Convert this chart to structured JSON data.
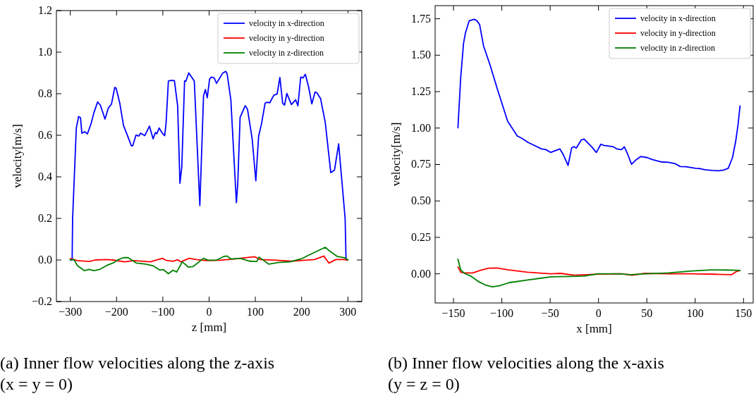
{
  "chart_data": [
    {
      "type": "line",
      "xlabel": "z [mm]",
      "ylabel": "velocity[m/s]",
      "xlim": [
        -330,
        330
      ],
      "ylim": [
        -0.2,
        1.2
      ],
      "xticks": [
        {
          "value": -300,
          "label": "−300"
        },
        {
          "value": -200,
          "label": "−200"
        },
        {
          "value": -100,
          "label": "−100"
        },
        0,
        100,
        200,
        300
      ],
      "yticks": [
        {
          "value": -0.2,
          "label": "−0.2"
        },
        {
          "value": 0,
          "label": "0.0"
        },
        {
          "value": 0.2,
          "label": "0.2"
        },
        {
          "value": 0.4,
          "label": "0.4"
        },
        {
          "value": 0.6,
          "label": "0.6"
        },
        {
          "value": 0.8,
          "label": "0.8"
        },
        {
          "value": 1,
          "label": "1.0"
        },
        {
          "value": 1.2,
          "label": "1.2"
        }
      ],
      "legend": "top right",
      "grid": false,
      "line_style": "solid",
      "annotations": [
        "(a) Inner flow velocities along the z-axis (x = y = 0)"
      ],
      "series": [
        {
          "name": "velocity in x-direction",
          "color": "#0000ff",
          "x": [
            -300,
            -296,
            -295,
            -287,
            -282,
            -278,
            -275,
            -269,
            -263,
            -255,
            -249,
            -241,
            -235,
            -225,
            -218,
            -211,
            -204,
            -201,
            -193,
            -185,
            -175,
            -168,
            -165,
            -158,
            -152,
            -148,
            -139,
            -129,
            -121,
            -116,
            -113,
            -108,
            -101,
            -96,
            -93,
            -88,
            -83,
            -75,
            -68,
            -63,
            -59,
            -53,
            -50,
            -44,
            -32,
            -20,
            -12,
            -8,
            -4,
            1,
            5,
            11,
            16,
            29,
            36,
            39,
            47,
            59,
            62,
            67,
            78,
            83,
            93,
            101,
            107,
            113,
            121,
            125,
            131,
            140,
            147,
            153,
            159,
            163,
            168,
            178,
            187,
            192,
            198,
            203,
            208,
            215,
            222,
            229,
            233,
            241,
            251,
            263,
            271,
            280,
            294,
            296,
            300
          ],
          "values": [
            0,
            0,
            0.2,
            0.635,
            0.69,
            0.685,
            0.61,
            0.617,
            0.607,
            0.657,
            0.708,
            0.76,
            0.745,
            0.678,
            0.73,
            0.75,
            0.83,
            0.827,
            0.754,
            0.647,
            0.59,
            0.549,
            0.55,
            0.601,
            0.596,
            0.61,
            0.598,
            0.644,
            0.583,
            0.613,
            0.607,
            0.635,
            0.61,
            0.598,
            0.657,
            0.861,
            0.864,
            0.863,
            0.742,
            0.369,
            0.449,
            0.861,
            0.861,
            0.9,
            0.861,
            0.262,
            0.79,
            0.82,
            0.78,
            0.87,
            0.88,
            0.876,
            0.85,
            0.898,
            0.908,
            0.895,
            0.771,
            0.276,
            0.37,
            0.686,
            0.742,
            0.725,
            0.584,
            0.381,
            0.595,
            0.652,
            0.754,
            0.759,
            0.756,
            0.793,
            0.799,
            0.878,
            0.754,
            0.745,
            0.801,
            0.748,
            0.771,
            0.742,
            0.88,
            0.876,
            0.893,
            0.833,
            0.751,
            0.808,
            0.804,
            0.776,
            0.663,
            0.42,
            0.432,
            0.559,
            0.2,
            0,
            0
          ]
        },
        {
          "name": "velocity in y-direction",
          "color": "#ff0000",
          "x": [
            -300,
            -285,
            -259,
            -246,
            -223,
            -208,
            -183,
            -162,
            -127,
            -101,
            -94,
            -78,
            -68,
            -61,
            -43,
            -28,
            -7,
            23,
            54,
            98,
            110,
            146,
            177,
            207,
            228,
            248,
            259,
            274,
            292,
            300
          ],
          "values": [
            0.006,
            -0.003,
            -0.007,
            0,
            0.002,
            0,
            -0.009,
            -0.003,
            -0.009,
            0.008,
            -0.001,
            -0.006,
            0.001,
            -0.009,
            0.008,
            0.002,
            -0.003,
            -0.001,
            0.005,
            0.016,
            0.002,
            -0.001,
            -0.006,
            -0.001,
            0.002,
            0.019,
            -0.015,
            0.002,
            0.002,
            0
          ]
        },
        {
          "name": "velocity in z-direction",
          "color": "#008000",
          "x": [
            -300,
            -292,
            -285,
            -270,
            -259,
            -249,
            -236,
            -221,
            -208,
            -196,
            -185,
            -175,
            -157,
            -137,
            -121,
            -106,
            -99,
            -88,
            -78,
            -70,
            -58,
            -45,
            -35,
            -12,
            -2,
            16,
            32,
            39,
            47,
            67,
            88,
            103,
            108,
            129,
            149,
            175,
            200,
            215,
            231,
            251,
            261,
            277,
            294,
            300
          ],
          "values": [
            0,
            0.002,
            -0.026,
            -0.051,
            -0.045,
            -0.051,
            -0.045,
            -0.026,
            -0.015,
            0.002,
            0.011,
            0.011,
            -0.015,
            -0.02,
            -0.028,
            -0.049,
            -0.046,
            -0.066,
            -0.049,
            -0.058,
            -0.009,
            -0.034,
            -0.032,
            0.008,
            -0.001,
            -0.001,
            0.017,
            0.019,
            0.005,
            0.008,
            -0.006,
            -0.007,
            0.014,
            -0.02,
            -0.012,
            -0.009,
            0.006,
            0.023,
            0.04,
            0.061,
            0.042,
            0.017,
            0.01,
            0
          ]
        }
      ]
    },
    {
      "type": "line",
      "xlabel": "x [mm]",
      "ylabel": "velocity[m/s]",
      "xlim": [
        -169,
        160
      ],
      "ylim": [
        -0.2,
        1.84
      ],
      "xticks": [
        {
          "value": -150,
          "label": "−150"
        },
        {
          "value": -100,
          "label": "−100"
        },
        {
          "value": -50,
          "label": "−50"
        },
        0,
        50,
        100,
        150
      ],
      "yticks": [
        {
          "value": 0,
          "label": "0.00"
        },
        {
          "value": 0.25,
          "label": "0.25"
        },
        {
          "value": 0.5,
          "label": "0.50"
        },
        {
          "value": 0.75,
          "label": "0.75"
        },
        {
          "value": 1,
          "label": "1.00"
        },
        {
          "value": 1.25,
          "label": "1.25"
        },
        {
          "value": 1.5,
          "label": "1.50"
        },
        {
          "value": 1.75,
          "label": "1.75"
        }
      ],
      "legend": "top right",
      "grid": false,
      "line_style": "solid",
      "annotations": [
        "(b) Inner flow velocities along the x-axis (y = z = 0)"
      ],
      "series": [
        {
          "name": "velocity in x-direction",
          "color": "#0000ff",
          "x": [
            -145.4,
            -142.5,
            -139.6,
            -137.7,
            -133.8,
            -128.7,
            -126,
            -123,
            -119,
            -112,
            -105,
            -94,
            -84,
            -79,
            -73,
            -59,
            -54.4,
            -49.5,
            -40,
            -37,
            -31.5,
            -27.7,
            -25.5,
            -23,
            -18,
            -15,
            -11.4,
            -6.6,
            -2.2,
            2.4,
            5.6,
            14.8,
            18.9,
            23.8,
            26.7,
            29.9,
            34.2,
            38.4,
            43.9,
            50.5,
            55.4,
            65,
            72.3,
            79.6,
            84.5,
            90.5,
            100.3,
            105,
            110,
            117.3,
            124.5,
            129.4,
            134.2,
            138.6,
            142,
            144.4,
            146.4
          ],
          "values": [
            1.002,
            1.349,
            1.582,
            1.651,
            1.735,
            1.746,
            1.738,
            1.711,
            1.566,
            1.429,
            1.276,
            1.047,
            0.946,
            0.929,
            0.902,
            0.857,
            0.852,
            0.833,
            0.857,
            0.825,
            0.744,
            0.865,
            0.873,
            0.862,
            0.917,
            0.925,
            0.9,
            0.868,
            0.833,
            0.889,
            0.881,
            0.873,
            0.857,
            0.852,
            0.871,
            0.825,
            0.752,
            0.78,
            0.805,
            0.797,
            0.784,
            0.768,
            0.765,
            0.755,
            0.736,
            0.735,
            0.724,
            0.722,
            0.714,
            0.709,
            0.707,
            0.712,
            0.724,
            0.797,
            0.913,
            1.026,
            1.152
          ]
        },
        {
          "name": "velocity in y-direction",
          "color": "#ff0000",
          "x": [
            -145.4,
            -142.5,
            -138.6,
            -130,
            -122,
            -113.4,
            -104.9,
            -92.7,
            -73.3,
            -49,
            -39.3,
            -24.8,
            -0.5,
            23.8,
            34.7,
            48,
            72.3,
            96.6,
            120.9,
            137.9,
            142.8,
            146.4
          ],
          "values": [
            0.048,
            0.011,
            0.006,
            0.006,
            0.024,
            0.039,
            0.04,
            0.027,
            0.011,
            0,
            0.003,
            -0.01,
            -0.002,
            0,
            -0.01,
            0.003,
            0,
            0,
            -0.003,
            -0.006,
            0.016,
            0.023
          ]
        },
        {
          "name": "velocity in z-direction",
          "color": "#008000",
          "x": [
            -145.4,
            -142.5,
            -138.6,
            -132.8,
            -124.3,
            -117,
            -109.8,
            -102.5,
            -92.7,
            -73.3,
            -49,
            -29.6,
            -15,
            -0.5,
            21.4,
            33.5,
            48,
            72.3,
            96.6,
            116,
            133,
            146.4
          ],
          "values": [
            0.1,
            0.027,
            0.003,
            -0.013,
            -0.053,
            -0.077,
            -0.089,
            -0.082,
            -0.061,
            -0.042,
            -0.021,
            -0.018,
            -0.016,
            0,
            0,
            -0.006,
            0,
            0.006,
            0.019,
            0.027,
            0.026,
            0.023
          ]
        }
      ]
    }
  ]
}
